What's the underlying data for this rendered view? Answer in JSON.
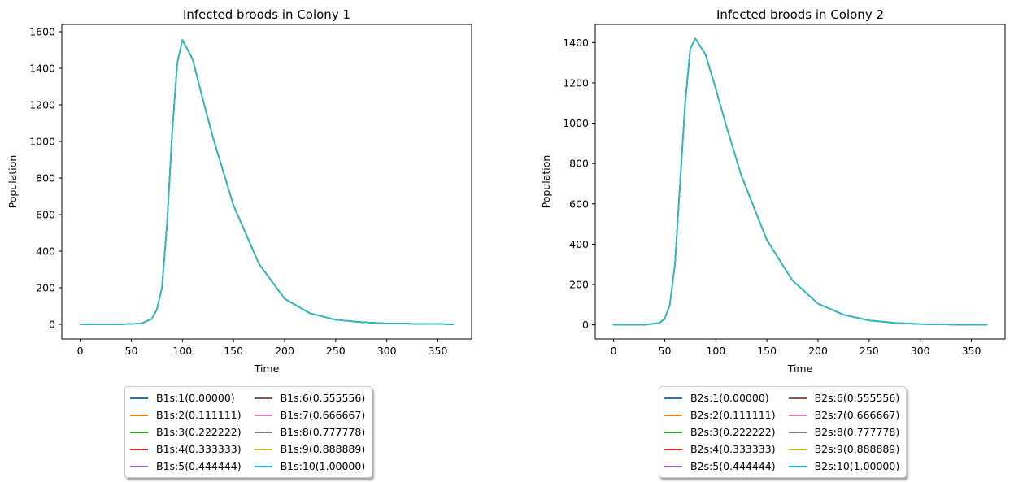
{
  "chart_data": [
    {
      "type": "line",
      "title": "Infected broods in Colony 1",
      "xlabel": "Time",
      "ylabel": "Population",
      "xlim": [
        -18,
        383
      ],
      "ylim": [
        -80,
        1640
      ],
      "xticks": [
        0,
        50,
        100,
        150,
        200,
        250,
        300,
        350
      ],
      "yticks": [
        0,
        200,
        400,
        600,
        800,
        1000,
        1200,
        1400,
        1600
      ],
      "legend_placement": "below",
      "x": [
        0,
        40,
        60,
        70,
        75,
        80,
        85,
        90,
        95,
        100,
        110,
        120,
        130,
        150,
        175,
        200,
        225,
        250,
        275,
        300,
        325,
        350,
        365
      ],
      "y_shared": [
        0,
        0,
        5,
        30,
        80,
        200,
        550,
        1050,
        1430,
        1555,
        1450,
        1230,
        1020,
        650,
        330,
        140,
        60,
        25,
        12,
        5,
        3,
        2,
        0
      ],
      "series": [
        {
          "name": "B1s:1(0.00000)",
          "color": "#1f77b4"
        },
        {
          "name": "B1s:2(0.111111)",
          "color": "#ff7f0e"
        },
        {
          "name": "B1s:3(0.222222)",
          "color": "#2ca02c"
        },
        {
          "name": "B1s:4(0.333333)",
          "color": "#d62728"
        },
        {
          "name": "B1s:5(0.444444)",
          "color": "#9467bd"
        },
        {
          "name": "B1s:6(0.555556)",
          "color": "#8c564b"
        },
        {
          "name": "B1s:7(0.666667)",
          "color": "#e377c2"
        },
        {
          "name": "B1s:8(0.777778)",
          "color": "#7f7f7f"
        },
        {
          "name": "B1s:9(0.888889)",
          "color": "#bcbd22"
        },
        {
          "name": "B1s:10(1.00000)",
          "color": "#17becf"
        }
      ]
    },
    {
      "type": "line",
      "title": "Infected broods in Colony 2",
      "xlabel": "Time",
      "ylabel": "Population",
      "xlim": [
        -18,
        383
      ],
      "ylim": [
        -70,
        1490
      ],
      "xticks": [
        0,
        50,
        100,
        150,
        200,
        250,
        300,
        350
      ],
      "yticks": [
        0,
        200,
        400,
        600,
        800,
        1000,
        1200,
        1400
      ],
      "legend_placement": "below",
      "x": [
        0,
        30,
        45,
        50,
        55,
        60,
        65,
        70,
        75,
        80,
        90,
        100,
        110,
        125,
        150,
        175,
        200,
        225,
        250,
        275,
        300,
        325,
        350,
        365
      ],
      "y_shared": [
        0,
        0,
        10,
        30,
        100,
        300,
        700,
        1100,
        1370,
        1420,
        1340,
        1170,
        990,
        740,
        420,
        220,
        105,
        50,
        22,
        10,
        4,
        2,
        1,
        0
      ],
      "series": [
        {
          "name": "B2s:1(0.00000)",
          "color": "#1f77b4"
        },
        {
          "name": "B2s:2(0.111111)",
          "color": "#ff7f0e"
        },
        {
          "name": "B2s:3(0.222222)",
          "color": "#2ca02c"
        },
        {
          "name": "B2s:4(0.333333)",
          "color": "#d62728"
        },
        {
          "name": "B2s:5(0.444444)",
          "color": "#9467bd"
        },
        {
          "name": "B2s:6(0.555556)",
          "color": "#8c564b"
        },
        {
          "name": "B2s:7(0.666667)",
          "color": "#e377c2"
        },
        {
          "name": "B2s:8(0.777778)",
          "color": "#7f7f7f"
        },
        {
          "name": "B2s:9(0.888889)",
          "color": "#bcbd22"
        },
        {
          "name": "B2s:10(1.00000)",
          "color": "#17becf"
        }
      ]
    }
  ]
}
